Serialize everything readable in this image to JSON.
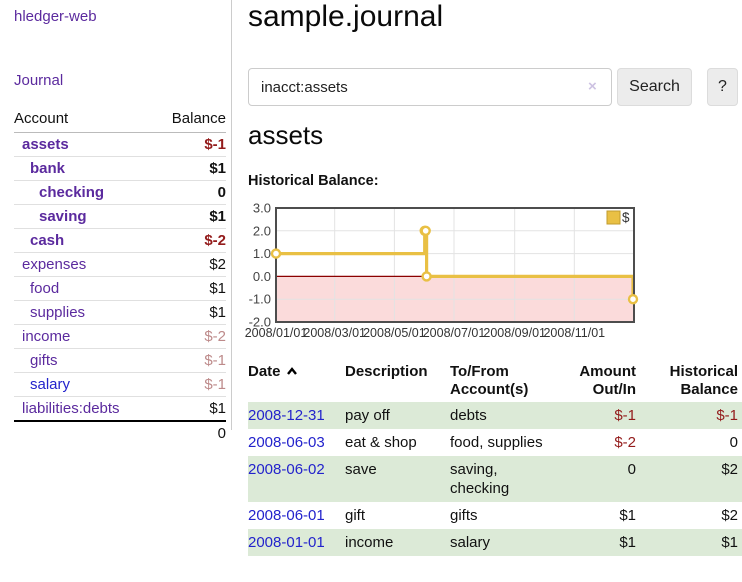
{
  "app": {
    "title": "hledger-web",
    "nav_journal": "Journal"
  },
  "colors": {
    "accent_purple": "#5b2a9e",
    "link_blue": "#2323cc",
    "negative_strong": "#931b1b",
    "negative_muted": "#bd8a8a",
    "row_green": "#dcead7"
  },
  "sidebar": {
    "headers": [
      "Account",
      "Balance"
    ],
    "accounts": [
      {
        "label": "assets",
        "balance": "$-1",
        "depth": 1,
        "bold": true,
        "label_style": "purple",
        "balance_style": "neg"
      },
      {
        "label": "bank",
        "balance": "$1",
        "depth": 2,
        "bold": true,
        "label_style": "purple",
        "balance_style": "pos"
      },
      {
        "label": "checking",
        "balance": "0",
        "depth": 3,
        "bold": true,
        "label_style": "purple",
        "balance_style": "pos"
      },
      {
        "label": "saving",
        "balance": "$1",
        "depth": 3,
        "bold": true,
        "label_style": "purple",
        "balance_style": "pos"
      },
      {
        "label": "cash",
        "balance": "$-2",
        "depth": 2,
        "bold": true,
        "label_style": "purple",
        "balance_style": "neg"
      },
      {
        "label": "expenses",
        "balance": "$2",
        "depth": 1,
        "bold": false,
        "label_style": "purple",
        "balance_style": "pos"
      },
      {
        "label": "food",
        "balance": "$1",
        "depth": 2,
        "bold": false,
        "label_style": "purple",
        "balance_style": "pos"
      },
      {
        "label": "supplies",
        "balance": "$1",
        "depth": 2,
        "bold": false,
        "label_style": "purple",
        "balance_style": "pos"
      },
      {
        "label": "income",
        "balance": "$-2",
        "depth": 1,
        "bold": false,
        "label_style": "purple",
        "balance_style": "negmuted"
      },
      {
        "label": "gifts",
        "balance": "$-1",
        "depth": 2,
        "bold": false,
        "label_style": "purple",
        "balance_style": "negmuted"
      },
      {
        "label": "salary",
        "balance": "$-1",
        "depth": 2,
        "bold": false,
        "label_style": "blue",
        "balance_style": "negmuted"
      },
      {
        "label": "liabilities:debts",
        "balance": "$1",
        "depth": 1,
        "bold": false,
        "label_style": "purple",
        "balance_style": "pos"
      }
    ],
    "total": "0"
  },
  "main": {
    "title": "sample.journal",
    "search": {
      "value": "inacct:assets",
      "clear_icon": "×",
      "button_label": "Search",
      "help_label": "?"
    },
    "account_heading": "assets"
  },
  "chart_data": {
    "type": "line",
    "title": "Historical Balance:",
    "subtype": "step-area",
    "legend": {
      "label": "$",
      "position": "top-right"
    },
    "grid": true,
    "ylim": [
      -2.0,
      3.0
    ],
    "ytick_values": [
      3.0,
      2.0,
      1.0,
      0.0,
      -1.0,
      -2.0
    ],
    "yticks": [
      "3.0",
      "2.0",
      "1.0",
      "0.0",
      "-1.0",
      "-2.0"
    ],
    "x_start": "2008-01-01",
    "x_end": "2009-01-01",
    "xticks": [
      {
        "label": "2008/01/01",
        "date": "2008-01-01"
      },
      {
        "label": "2008/03/01",
        "date": "2008-03-01"
      },
      {
        "label": "2008/05/01",
        "date": "2008-05-01"
      },
      {
        "label": "2008/07/01",
        "date": "2008-07-01"
      },
      {
        "label": "2008/09/01",
        "date": "2008-09-01"
      },
      {
        "label": "2008/11/01",
        "date": "2008-11-01"
      }
    ],
    "series": [
      {
        "name": "$",
        "color": "#e9c044",
        "points": [
          {
            "date": "2008-01-01",
            "value": 1
          },
          {
            "date": "2008-06-01",
            "value": 2
          },
          {
            "date": "2008-06-02",
            "value": 2
          },
          {
            "date": "2008-06-03",
            "value": 0
          },
          {
            "date": "2008-12-31",
            "value": -1
          }
        ]
      }
    ],
    "negative_region_fill": "#fbdbdb",
    "zero_line_color": "#8b0000"
  },
  "register": {
    "headers": [
      "Date",
      "Description",
      "To/From Account(s)",
      "Amount Out/In",
      "Historical Balance"
    ],
    "sort": "ascending",
    "rows": [
      {
        "date": "2008-12-31",
        "description": "pay off",
        "accounts": "debts",
        "amount": "$-1",
        "amount_style": "neg",
        "balance": "$-1",
        "balance_style": "neg"
      },
      {
        "date": "2008-06-03",
        "description": "eat & shop",
        "accounts": "food, supplies",
        "amount": "$-2",
        "amount_style": "neg",
        "balance": "0",
        "balance_style": "pos"
      },
      {
        "date": "2008-06-02",
        "description": "save",
        "accounts": "saving, checking",
        "amount": "0",
        "amount_style": "pos",
        "balance": "$2",
        "balance_style": "pos"
      },
      {
        "date": "2008-06-01",
        "description": "gift",
        "accounts": "gifts",
        "amount": "$1",
        "amount_style": "pos",
        "balance": "$2",
        "balance_style": "pos"
      },
      {
        "date": "2008-01-01",
        "description": "income",
        "accounts": "salary",
        "amount": "$1",
        "amount_style": "pos",
        "balance": "$1",
        "balance_style": "pos"
      }
    ]
  }
}
